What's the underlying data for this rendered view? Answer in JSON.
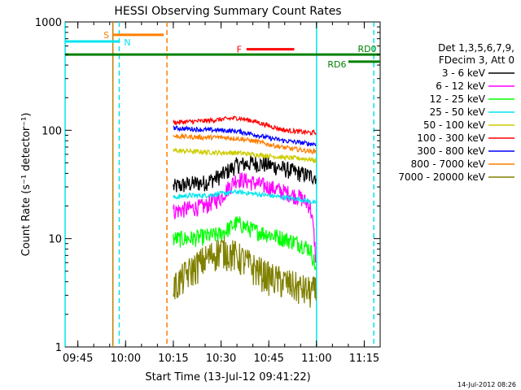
{
  "chart_data": {
    "type": "line",
    "title": "HESSI Observing Summary Count Rates",
    "xlabel": "Start Time (13-Jul-12 09:41:22)",
    "ylabel": "Count Rate (s⁻¹ detector⁻¹)",
    "yscale": "log",
    "ylim": [
      1,
      1000
    ],
    "xlim": [
      "09:41",
      "11:20"
    ],
    "xticks": [
      "09:45",
      "10:00",
      "10:15",
      "10:30",
      "10:45",
      "11:00",
      "11:15"
    ],
    "yticks": [
      "1",
      "10",
      "100",
      "1000"
    ],
    "legend_header": [
      "Det 1,3,5,6,7,9,",
      "FDecim 3, Att 0"
    ],
    "legend_placement": "right",
    "timestamp": "14-Jul-2012 08:26",
    "annotations": [
      {
        "label": "S",
        "color": "#ff7f00",
        "start": "09:56",
        "end": "10:12"
      },
      {
        "label": "N",
        "color": "#00e5ee",
        "start": "09:41",
        "end": "09:58"
      },
      {
        "label": "F",
        "color": "#ff0000",
        "start": "10:38",
        "end": "10:53"
      },
      {
        "label": "RD0",
        "color": "#008000",
        "start": "09:41",
        "end": "11:20"
      },
      {
        "label": "RD6",
        "color": "#008000",
        "start": "11:10",
        "end": "11:20"
      }
    ],
    "vlines": [
      {
        "time": "09:41",
        "color": "#00e5ee",
        "style": "solid"
      },
      {
        "time": "09:56",
        "color": "#c08000",
        "style": "solid"
      },
      {
        "time": "09:58",
        "color": "#00e5ee",
        "style": "dashed"
      },
      {
        "time": "10:13",
        "color": "#ff7f00",
        "style": "dashed"
      },
      {
        "time": "11:00",
        "color": "#00e5ee",
        "style": "solid"
      },
      {
        "time": "11:18",
        "color": "#00e5ee",
        "style": "dashed"
      }
    ],
    "x_minutes": [
      15,
      20,
      25,
      30,
      35,
      40,
      45,
      50,
      55,
      58,
      60
    ],
    "series": [
      {
        "name": "3 - 6 keV",
        "color": "#000000",
        "values": [
          30,
          32,
          33,
          38,
          48,
          50,
          48,
          44,
          40,
          38,
          null
        ]
      },
      {
        "name": "6 - 12 keV",
        "color": "#ff00ff",
        "values": [
          18,
          19,
          20,
          24,
          36,
          33,
          30,
          27,
          24,
          20,
          4.5
        ]
      },
      {
        "name": "12 - 25 keV",
        "color": "#00ff00",
        "values": [
          10,
          10,
          10.5,
          11,
          14,
          12,
          11,
          10,
          9,
          8,
          5
        ]
      },
      {
        "name": "25 - 50 keV",
        "color": "#00e5ee",
        "values": [
          24,
          25,
          25,
          26,
          27,
          26,
          25,
          24,
          23,
          22,
          21
        ]
      },
      {
        "name": "50 - 100 keV",
        "color": "#cccc00",
        "values": [
          65,
          64,
          63,
          62,
          62,
          60,
          58,
          56,
          55,
          54,
          52
        ]
      },
      {
        "name": "100 - 300 keV",
        "color": "#ff0000",
        "values": [
          118,
          120,
          122,
          126,
          130,
          122,
          110,
          100,
          97,
          95,
          95
        ]
      },
      {
        "name": "300 - 800 keV",
        "color": "#0000ff",
        "values": [
          105,
          103,
          101,
          100,
          98,
          92,
          85,
          80,
          77,
          75,
          75
        ]
      },
      {
        "name": "800 - 7000 keV",
        "color": "#ff7f00",
        "values": [
          88,
          87,
          86,
          86,
          84,
          80,
          74,
          69,
          66,
          64,
          64
        ]
      },
      {
        "name": "7000 - 20000 keV",
        "color": "#808000",
        "values": [
          3.5,
          5,
          6.5,
          8,
          7,
          5.5,
          4.5,
          4,
          3.5,
          3.3,
          3.3
        ]
      }
    ]
  }
}
